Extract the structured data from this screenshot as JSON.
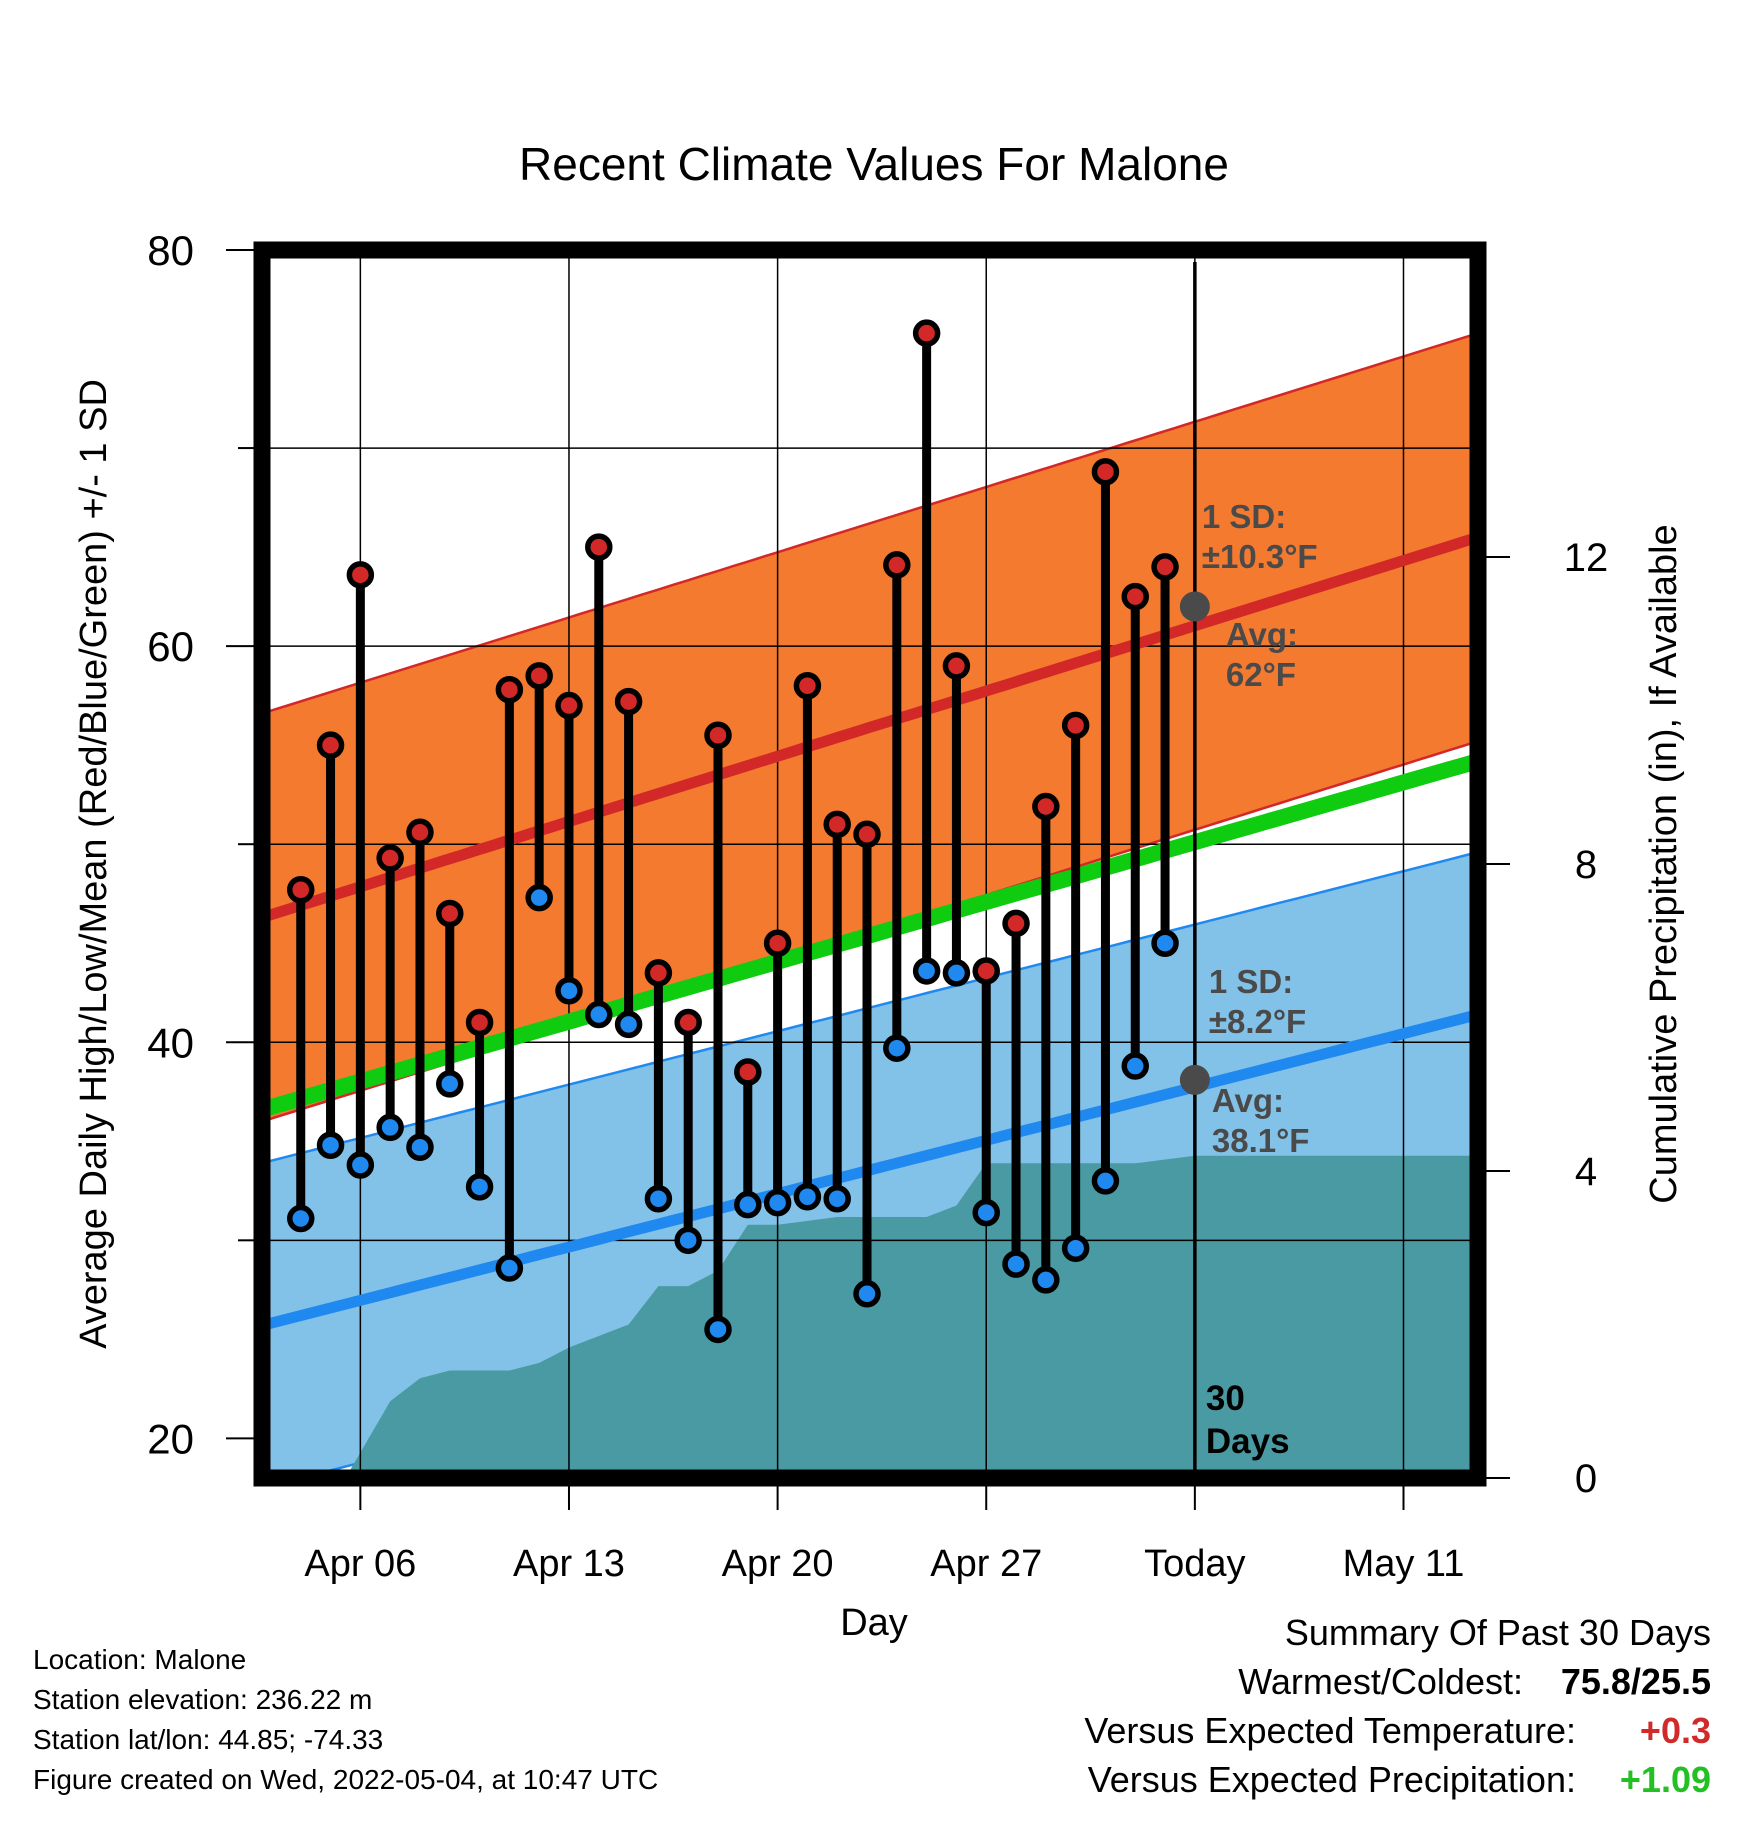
{
  "chart_data": {
    "type": "line",
    "title": "Recent Climate Values For Malone",
    "xlabel": "Day",
    "ylabel": "Average Daily High/Low/Mean (Red/Blue/Green) +/- 1 SD",
    "y2label": "Cumulative Precipitation (in), If Available",
    "x_tick_labels": [
      "Apr 06",
      "Apr 13",
      "Apr 20",
      "Apr 27",
      "Today",
      "May 11"
    ],
    "x_tick_days": [
      0,
      7,
      14,
      21,
      28,
      35
    ],
    "xlim": [
      -3.3,
      37.5
    ],
    "ylim": [
      18,
      80
    ],
    "y_ticks": [
      20,
      40,
      60,
      80
    ],
    "y2lim": [
      0,
      16
    ],
    "y2_ticks": [
      0,
      4,
      8,
      12
    ],
    "grid": true,
    "normal_high": {
      "start": 46.3,
      "end": 65.5,
      "sd": 10.3
    },
    "normal_low": {
      "start": 25.7,
      "end": 41.4,
      "sd": 8.2
    },
    "normal_mean": {
      "start": 36.6,
      "end": 54.2
    },
    "daily_highs": [
      47.7,
      55.0,
      63.6,
      49.3,
      50.6,
      46.5,
      41.0,
      57.8,
      58.5,
      57.0,
      65.0,
      57.2,
      43.5,
      41.0,
      55.5,
      38.5,
      45.0,
      58.0,
      51.0,
      50.5,
      64.1,
      75.8,
      59.0,
      43.6,
      46.0,
      51.9,
      56.0,
      68.8,
      62.5,
      64.0
    ],
    "daily_lows": [
      31.1,
      34.8,
      33.8,
      35.7,
      34.7,
      37.9,
      32.7,
      28.6,
      47.3,
      42.6,
      41.4,
      40.9,
      32.1,
      30.0,
      25.5,
      31.8,
      31.9,
      32.2,
      32.1,
      27.3,
      39.7,
      43.6,
      43.5,
      31.4,
      28.8,
      28.0,
      29.6,
      33.0,
      38.8,
      45.0
    ],
    "cumulative_precip": {
      "days": [
        -3.3,
        -2.5,
        -1.5,
        -0.5,
        1.0,
        2.0,
        3.0,
        4.0,
        5.0,
        6.0,
        7.0,
        8.0,
        9.0,
        10.0,
        11.0,
        12.0,
        13.0,
        14.0,
        15.0,
        16.0,
        17.0,
        18.0,
        19.0,
        20.0,
        21.0,
        22.0,
        23.0,
        24.0,
        25.0,
        26.0,
        27.0,
        28.0,
        30.0,
        37.5
      ],
      "values": [
        0,
        0,
        0,
        0,
        1.0,
        1.3,
        1.4,
        1.4,
        1.4,
        1.5,
        1.7,
        1.85,
        2.0,
        2.5,
        2.5,
        2.7,
        3.3,
        3.3,
        3.35,
        3.4,
        3.4,
        3.4,
        3.4,
        3.55,
        4.1,
        4.1,
        4.1,
        4.1,
        4.1,
        4.1,
        4.15,
        4.2,
        4.2,
        4.2
      ]
    },
    "annotations": {
      "high_sd": [
        "1 SD:",
        "±10.3°F"
      ],
      "high_avg": [
        "Avg:",
        "62°F"
      ],
      "low_sd": [
        "1 SD:",
        "±8.2°F"
      ],
      "low_avg": [
        "Avg:",
        "38.1°F"
      ],
      "today_avg_high": 62,
      "today_avg_low": 38.1,
      "days_label": [
        "30",
        "Days"
      ]
    },
    "colors": {
      "high_band": "#f47a30",
      "high_line": "#d22828",
      "low_band": "#83c2e8",
      "low_line": "#2089f0",
      "mean_line": "#10cc10",
      "precip": "#4a9aa3",
      "marker_high": "#d22828",
      "marker_low": "#2089f0",
      "annotation_text": "#4a4a4a"
    }
  },
  "footer": {
    "location": "Location: Malone",
    "elevation": "Station elevation: 236.22 m",
    "latlon": "Station lat/lon: 44.85; -74.33",
    "created": "Figure created on Wed, 2022-05-04, at 10:47 UTC"
  },
  "summary": {
    "title": "Summary Of Past 30 Days",
    "warm_label": "Warmest/Coldest:",
    "warm_value": "75.8/25.5",
    "temp_label": "Versus Expected Temperature:",
    "temp_value": "+0.3",
    "prec_label": "Versus Expected Precipitation:",
    "prec_value": "+1.09"
  }
}
